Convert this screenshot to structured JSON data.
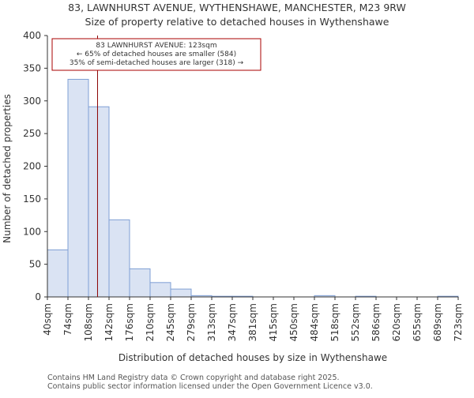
{
  "chart_data": {
    "type": "bar",
    "title_line1": "83, LAWNHURST AVENUE, WYTHENSHAWE, MANCHESTER, M23 9RW",
    "title_line2": "Size of property relative to detached houses in Wythenshawe",
    "xlabel": "Distribution of detached houses by size in Wythenshawe",
    "ylabel": "Number of detached properties",
    "bin_edges": [
      40,
      74,
      108,
      142,
      176,
      210,
      245,
      279,
      313,
      347,
      381,
      415,
      450,
      484,
      518,
      552,
      586,
      620,
      655,
      689,
      723
    ],
    "tick_labels": [
      "40sqm",
      "74sqm",
      "108sqm",
      "142sqm",
      "176sqm",
      "210sqm",
      "245sqm",
      "279sqm",
      "313sqm",
      "347sqm",
      "381sqm",
      "415sqm",
      "450sqm",
      "484sqm",
      "518sqm",
      "552sqm",
      "586sqm",
      "620sqm",
      "655sqm",
      "689sqm",
      "723sqm"
    ],
    "values": [
      72,
      333,
      291,
      118,
      43,
      22,
      12,
      2,
      1,
      1,
      0,
      0,
      0,
      2,
      0,
      1,
      0,
      0,
      0,
      1
    ],
    "ylim": [
      0,
      400
    ],
    "yticks": [
      0,
      50,
      100,
      150,
      200,
      250,
      300,
      350,
      400
    ],
    "property_marker": {
      "value": 123,
      "label_line1": "83 LAWNHURST AVENUE: 123sqm",
      "label_line2": "← 65% of detached houses are smaller (584)",
      "label_line3": "35% of semi-detached houses are larger (318) →"
    },
    "colors": {
      "bar_fill": "#dae3f3",
      "bar_edge": "#7f9fd4",
      "marker_line": "#8b0000",
      "annotation_border": "#aa0000",
      "axis": "#333333"
    }
  },
  "footer": {
    "line1": "Contains HM Land Registry data © Crown copyright and database right 2025.",
    "line2": "Contains public sector information licensed under the Open Government Licence v3.0."
  }
}
